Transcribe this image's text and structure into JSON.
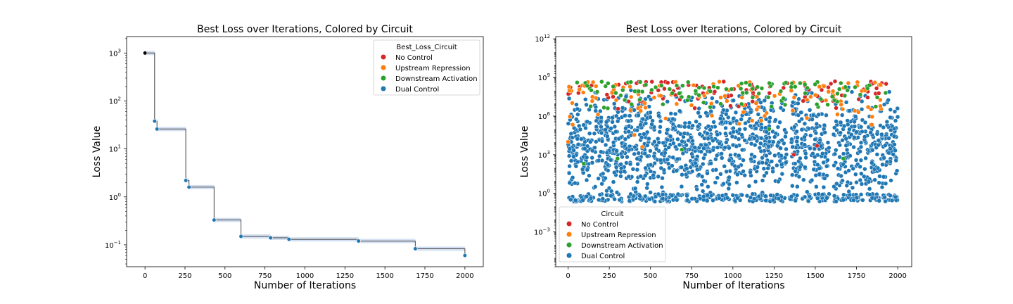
{
  "chart_data": [
    {
      "type": "line",
      "title": "Best Loss over Iterations, Colored by Circuit",
      "xlabel": "Number of Iterations",
      "ylabel": "Loss Value",
      "xlim": [
        -115,
        2115
      ],
      "ylim": [
        0.035,
        2200
      ],
      "yscale": "log",
      "xticks": [
        0,
        250,
        500,
        750,
        1000,
        1250,
        1500,
        1750,
        2000
      ],
      "yticks": [
        {
          "value": 0.1,
          "base": "10",
          "exp": "−1"
        },
        {
          "value": 1,
          "base": "10",
          "exp": "0"
        },
        {
          "value": 10,
          "base": "10",
          "exp": "1"
        },
        {
          "value": 100,
          "base": "10",
          "exp": "2"
        },
        {
          "value": 1000,
          "base": "10",
          "exp": "3"
        }
      ],
      "legend": {
        "title": "Best_Loss_Circuit",
        "placement": "upper right",
        "entries": [
          {
            "label": "No Control",
            "color": "#d62728"
          },
          {
            "label": "Upstream Repression",
            "color": "#ff7f0e"
          },
          {
            "label": "Downstream Activation",
            "color": "#2ca02c"
          },
          {
            "label": "Dual Control",
            "color": "#1f77b4"
          }
        ]
      },
      "line_color": "#555555",
      "band_color": "#aec7e8",
      "points": [
        {
          "x": 0,
          "y": 1000,
          "circuit": "start",
          "color": "#000000"
        },
        {
          "x": 60,
          "y": 38,
          "circuit": "Dual Control",
          "color": "#1f77b4"
        },
        {
          "x": 75,
          "y": 26,
          "circuit": "Dual Control",
          "color": "#1f77b4"
        },
        {
          "x": 255,
          "y": 2.2,
          "circuit": "Dual Control",
          "color": "#1f77b4"
        },
        {
          "x": 275,
          "y": 1.6,
          "circuit": "Dual Control",
          "color": "#1f77b4"
        },
        {
          "x": 432,
          "y": 0.33,
          "circuit": "Dual Control",
          "color": "#1f77b4"
        },
        {
          "x": 600,
          "y": 0.15,
          "circuit": "Dual Control",
          "color": "#1f77b4"
        },
        {
          "x": 785,
          "y": 0.14,
          "circuit": "Dual Control",
          "color": "#1f77b4"
        },
        {
          "x": 900,
          "y": 0.13,
          "circuit": "Dual Control",
          "color": "#1f77b4"
        },
        {
          "x": 1335,
          "y": 0.12,
          "circuit": "Dual Control",
          "color": "#1f77b4"
        },
        {
          "x": 1690,
          "y": 0.083,
          "circuit": "Dual Control",
          "color": "#1f77b4"
        },
        {
          "x": 2000,
          "y": 0.06,
          "circuit": "Dual Control",
          "color": "#1f77b4"
        }
      ]
    },
    {
      "type": "scatter",
      "title": "Best Loss over Iterations, Colored by Circuit",
      "xlabel": "Number of Iterations",
      "ylabel": "Loss Value",
      "xlim": [
        -75,
        2085
      ],
      "ylim": [
        2e-06,
        1500000000000.0
      ],
      "yscale": "log",
      "xticks": [
        0,
        250,
        500,
        750,
        1000,
        1250,
        1500,
        1750,
        2000
      ],
      "yticks": [
        {
          "value": 0.001,
          "base": "10",
          "exp": "−3"
        },
        {
          "value": 1,
          "base": "10",
          "exp": "0"
        },
        {
          "value": 1000,
          "base": "10",
          "exp": "3"
        },
        {
          "value": 1000000,
          "base": "10",
          "exp": "6"
        },
        {
          "value": 1000000000,
          "base": "10",
          "exp": "9"
        },
        {
          "value": 1000000000000,
          "base": "10",
          "exp": "12"
        }
      ],
      "legend": {
        "title": "Circuit",
        "placement": "lower left",
        "entries": [
          {
            "label": "No Control",
            "color": "#d62728"
          },
          {
            "label": "Upstream Repression",
            "color": "#ff7f0e"
          },
          {
            "label": "Downstream Activation",
            "color": "#2ca02c"
          },
          {
            "label": "Dual Control",
            "color": "#1f77b4"
          }
        ]
      },
      "series": [
        {
          "name": "Dual Control",
          "color": "#1f77b4",
          "n": 1700,
          "x_range": [
            0,
            2000
          ],
          "log10_y_range": [
            -0.7,
            8.3
          ],
          "x_gaps": [
            [
              1325,
              1345
            ],
            [
              1585,
              1610
            ]
          ]
        },
        {
          "name": "No Control",
          "color": "#d62728",
          "n": 90,
          "x_range": [
            0,
            1950
          ],
          "log10_y_range": [
            6.3,
            8.7
          ]
        },
        {
          "name": "Upstream Repression",
          "color": "#ff7f0e",
          "n": 110,
          "x_range": [
            0,
            1950
          ],
          "log10_y_range": [
            4.2,
            8.7
          ]
        },
        {
          "name": "Downstream Activation",
          "color": "#2ca02c",
          "n": 110,
          "x_range": [
            0,
            1950
          ],
          "log10_y_range": [
            6.3,
            8.7
          ]
        }
      ],
      "outliers": [
        {
          "x": 0,
          "y": 10000,
          "circuit": "Upstream Repression"
        },
        {
          "x": 95,
          "y": 200,
          "circuit": "Downstream Activation"
        },
        {
          "x": 300,
          "y": 500,
          "circuit": "Downstream Activation"
        },
        {
          "x": 690,
          "y": 2500,
          "circuit": "Downstream Activation"
        },
        {
          "x": 1370,
          "y": 1000,
          "circuit": "No Control"
        },
        {
          "x": 450,
          "y": 4000,
          "circuit": "Upstream Repression"
        },
        {
          "x": 1510,
          "y": 5000,
          "circuit": "No Control"
        },
        {
          "x": 1220,
          "y": 100000,
          "circuit": "Downstream Activation"
        },
        {
          "x": 1670,
          "y": 500,
          "circuit": "Downstream Activation"
        }
      ]
    }
  ]
}
